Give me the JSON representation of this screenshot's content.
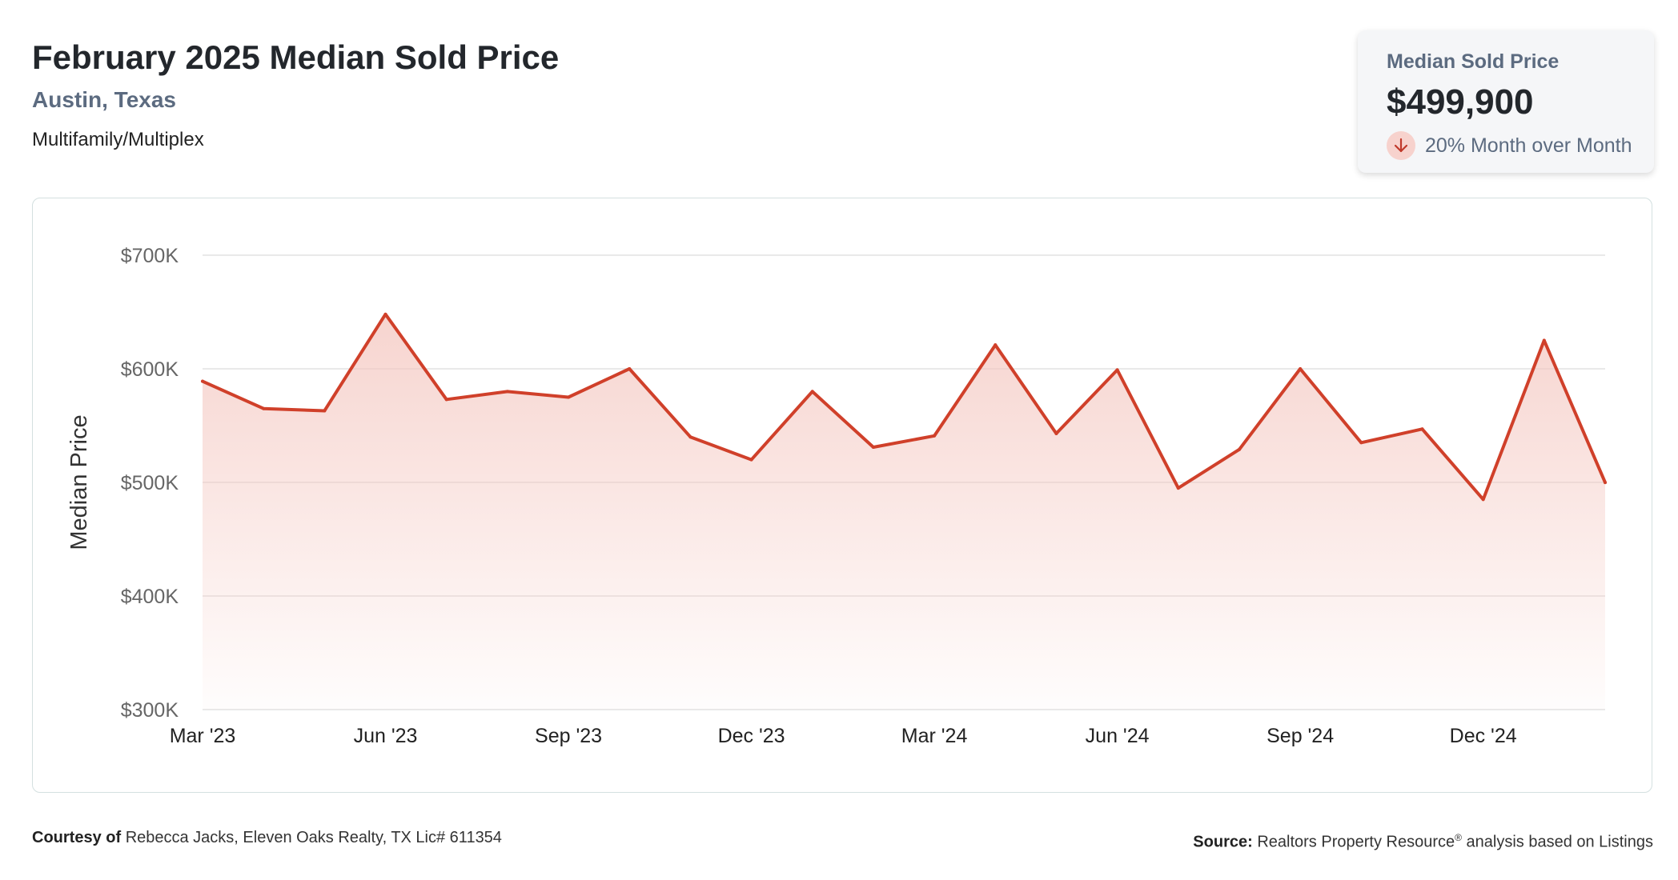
{
  "header": {
    "title": "February 2025 Median Sold Price",
    "location": "Austin, Texas",
    "property_type": "Multifamily/Multiplex"
  },
  "stat_card": {
    "label": "Median Sold Price",
    "value": "$499,900",
    "change_text": "20% Month over Month",
    "change_direction": "down",
    "change_icon": "arrow-down-icon"
  },
  "colors": {
    "line": "#d0402a",
    "fill": "#f4c6bf",
    "grid": "#dcdcdc",
    "muted_text": "#5c6b80"
  },
  "chart_data": {
    "type": "area",
    "title": "",
    "ylabel": "Median Price",
    "xlabel": "",
    "ylim": [
      300000,
      700000
    ],
    "yticks": [
      {
        "value": 700000,
        "label": "$700K"
      },
      {
        "value": 600000,
        "label": "$600K"
      },
      {
        "value": 500000,
        "label": "$500K"
      },
      {
        "value": 400000,
        "label": "$400K"
      },
      {
        "value": 300000,
        "label": "$300K"
      }
    ],
    "x": [
      "Mar '23",
      "Apr '23",
      "May '23",
      "Jun '23",
      "Jul '23",
      "Aug '23",
      "Sep '23",
      "Oct '23",
      "Nov '23",
      "Dec '23",
      "Jan '24",
      "Feb '24",
      "Mar '24",
      "Apr '24",
      "May '24",
      "Jun '24",
      "Jul '24",
      "Aug '24",
      "Sep '24",
      "Oct '24",
      "Nov '24",
      "Dec '24",
      "Jan '25",
      "Feb '25"
    ],
    "xtick_labels": [
      "Mar '23",
      "Jun '23",
      "Sep '23",
      "Dec '23",
      "Mar '24",
      "Jun '24",
      "Sep '24",
      "Dec '24"
    ],
    "series": [
      {
        "values": [
          589000,
          565000,
          563000,
          648000,
          573000,
          580000,
          575000,
          600000,
          540000,
          520000,
          580000,
          531000,
          541000,
          621000,
          543000,
          599000,
          495000,
          529000,
          600000,
          535000,
          547000,
          485000,
          625000,
          499900
        ]
      }
    ],
    "grid": true,
    "legend": "none"
  },
  "footer": {
    "courtesy_label": "Courtesy of",
    "courtesy_text": "Rebecca Jacks, Eleven Oaks Realty, TX Lic# 611354",
    "source_label": "Source:",
    "source_text": "Realtors Property Resource",
    "source_mark": "®",
    "source_suffix": "analysis based on Listings"
  }
}
